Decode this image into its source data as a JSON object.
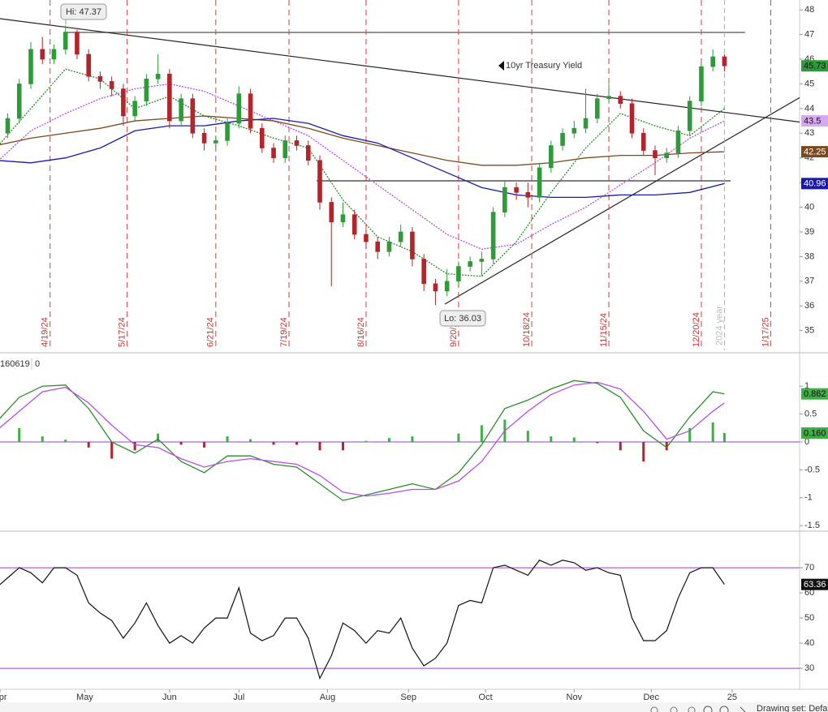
{
  "chart_data": [
    {
      "type": "candlestick",
      "title": "10yr Treasury Yield",
      "x": [
        0,
        3,
        6,
        9,
        12,
        15,
        18,
        21,
        24,
        27,
        30,
        33,
        36,
        39,
        42,
        45,
        48,
        51,
        54,
        57,
        60,
        63,
        66,
        69,
        72,
        75,
        78,
        81,
        84,
        87,
        90,
        93,
        96,
        99,
        102,
        105,
        108,
        111,
        114,
        117,
        120,
        123,
        126,
        129,
        132,
        135,
        138,
        141,
        144,
        147,
        150,
        153,
        156,
        159,
        162,
        165,
        168,
        171,
        174,
        177,
        180,
        183,
        186,
        189
      ],
      "open": [
        43.2,
        43.0,
        43.6,
        45.0,
        46.4,
        46.0,
        46.4,
        47.1,
        46.2,
        45.3,
        45.1,
        44.8,
        43.7,
        44.3,
        45.2,
        45.4,
        43.5,
        44.4,
        43.0,
        42.6,
        42.7,
        43.4,
        44.6,
        43.2,
        42.4,
        42.0,
        42.7,
        42.5,
        41.9,
        40.2,
        39.4,
        39.7,
        38.9,
        38.6,
        38.2,
        38.6,
        39.0,
        37.9,
        36.9,
        36.6,
        37.0,
        37.6,
        37.8,
        37.9,
        39.8,
        40.8,
        40.6,
        40.4,
        41.6,
        42.5,
        43.0,
        43.2,
        43.6,
        44.4,
        44.5,
        44.2,
        43.0,
        42.3,
        42.0,
        42.2,
        43.1,
        44.3,
        45.7,
        46.1
      ],
      "high": [
        43.4,
        43.8,
        45.2,
        46.7,
        46.9,
        46.6,
        47.37,
        47.2,
        46.4,
        45.5,
        45.3,
        45.0,
        44.5,
        45.4,
        46.2,
        45.6,
        44.6,
        44.6,
        43.2,
        42.9,
        43.6,
        44.9,
        44.8,
        43.4,
        42.6,
        42.9,
        42.9,
        42.7,
        42.1,
        40.4,
        40.2,
        39.9,
        39.1,
        38.8,
        38.8,
        39.3,
        39.2,
        38.1,
        37.1,
        37.5,
        37.8,
        38.0,
        38.2,
        40.0,
        41.1,
        41.0,
        41.0,
        41.8,
        42.7,
        43.2,
        43.5,
        44.8,
        44.6,
        45.0,
        44.7,
        44.4,
        43.2,
        42.5,
        42.4,
        43.3,
        44.5,
        45.9,
        46.4,
        46.2
      ],
      "low": [
        42.8,
        42.8,
        43.4,
        44.8,
        45.8,
        45.8,
        46.2,
        46.0,
        45.1,
        44.8,
        44.5,
        43.3,
        43.5,
        44.1,
        45.0,
        43.2,
        43.3,
        42.8,
        42.3,
        42.4,
        42.5,
        43.2,
        43.0,
        42.2,
        41.8,
        41.8,
        42.3,
        41.7,
        39.9,
        36.8,
        39.2,
        38.7,
        38.3,
        37.9,
        38.0,
        38.4,
        37.6,
        36.6,
        36.03,
        36.4,
        36.8,
        37.4,
        37.2,
        37.7,
        39.6,
        40.3,
        40.0,
        40.2,
        41.4,
        42.3,
        42.8,
        43.0,
        43.4,
        44.2,
        44.0,
        42.8,
        42.1,
        41.3,
        41.8,
        42.0,
        42.9,
        44.1,
        45.5,
        45.5
      ],
      "close": [
        43.0,
        43.6,
        45.0,
        46.4,
        46.0,
        46.4,
        47.1,
        46.2,
        45.3,
        45.1,
        44.8,
        43.7,
        44.3,
        45.2,
        45.4,
        43.5,
        44.4,
        43.0,
        42.6,
        42.7,
        43.4,
        44.6,
        43.2,
        42.4,
        42.0,
        42.7,
        42.5,
        41.9,
        40.2,
        39.4,
        39.7,
        38.9,
        38.6,
        38.2,
        38.6,
        39.0,
        37.9,
        36.9,
        36.6,
        37.0,
        37.6,
        37.8,
        37.9,
        39.8,
        40.8,
        40.6,
        40.4,
        41.6,
        42.5,
        43.0,
        43.2,
        43.6,
        44.4,
        44.5,
        44.2,
        43.0,
        42.3,
        42.0,
        42.2,
        43.1,
        44.3,
        45.7,
        46.1,
        45.73
      ],
      "color_up": "#2f9a3a",
      "color_down": "#b3242b",
      "ma_x": [
        0,
        9,
        18,
        27,
        36,
        45,
        54,
        63,
        72,
        81,
        90,
        99,
        108,
        117,
        126,
        135,
        144,
        153,
        162,
        171,
        180,
        189
      ],
      "overlays": [
        {
          "color": "#2a8a2a",
          "dashed": true,
          "values": [
            42.4,
            44.0,
            45.6,
            45.2,
            44.0,
            44.5,
            43.7,
            43.3,
            42.8,
            42.4,
            40.3,
            38.8,
            38.2,
            37.3,
            37.2,
            38.6,
            40.6,
            42.4,
            43.8,
            43.3,
            42.9,
            44.0
          ]
        },
        {
          "color": "#b44fe6",
          "dashed": true,
          "values": [
            41.8,
            43.1,
            43.8,
            44.4,
            44.8,
            45.0,
            44.7,
            44.1,
            43.5,
            42.9,
            41.9,
            40.9,
            39.9,
            38.9,
            38.3,
            38.5,
            39.3,
            40.0,
            40.9,
            41.8,
            42.8,
            43.5
          ]
        },
        {
          "color": "#7a4a1e",
          "dashed": false,
          "values": [
            42.5,
            42.8,
            43.0,
            43.2,
            43.5,
            43.6,
            43.7,
            43.6,
            43.5,
            43.2,
            42.8,
            42.5,
            42.2,
            41.9,
            41.7,
            41.7,
            41.8,
            42.0,
            42.1,
            42.1,
            42.2,
            42.25
          ]
        },
        {
          "color": "#1a1aaa",
          "dashed": false,
          "values": [
            41.9,
            41.8,
            42.0,
            42.4,
            43.1,
            43.3,
            43.3,
            43.5,
            43.6,
            43.4,
            42.9,
            42.6,
            42.0,
            41.4,
            40.8,
            40.5,
            40.4,
            40.4,
            40.5,
            40.5,
            40.6,
            40.96
          ]
        }
      ],
      "tags": [
        {
          "value": 45.73,
          "color": "#2f9a3a",
          "text_color": "#111"
        },
        {
          "value": 43.5,
          "color": "#d7a8f2",
          "text_color": "#111"
        },
        {
          "value": 42.25,
          "color": "#7a4a1e",
          "text_color": "#fff"
        },
        {
          "value": 40.96,
          "color": "#1a1aaa",
          "text_color": "#fff"
        }
      ],
      "annotations": [
        "Hi: 47.37",
        "Lo: 36.03"
      ],
      "events": [
        {
          "x": 14,
          "label": "4/19/24"
        },
        {
          "x": 34,
          "label": "5/17/24"
        },
        {
          "x": 57,
          "label": "6/21/24"
        },
        {
          "x": 76,
          "label": "7/19/24"
        },
        {
          "x": 96,
          "label": "8/16/24"
        },
        {
          "x": 120,
          "label": "9/20/24"
        },
        {
          "x": 139,
          "label": "10/18/24"
        },
        {
          "x": 159,
          "label": "11/15/24"
        },
        {
          "x": 183,
          "label": "12/20/24"
        },
        {
          "x": 201,
          "label": "1/17/25"
        }
      ],
      "year_marker": {
        "x": 189,
        "label": "2024 year"
      },
      "xlim": [
        1,
        208.5
      ],
      "ylim": [
        34.2,
        48.4
      ],
      "yticks": [
        35,
        36,
        37,
        38,
        39,
        40,
        41,
        42,
        43,
        44,
        45,
        46,
        47,
        48
      ]
    },
    {
      "type": "macd",
      "header": [
        "160619",
        "0"
      ],
      "x": [
        0,
        6,
        12,
        18,
        24,
        30,
        36,
        42,
        48,
        54,
        60,
        66,
        72,
        78,
        84,
        90,
        96,
        102,
        108,
        114,
        120,
        126,
        132,
        138,
        144,
        150,
        156,
        162,
        168,
        174,
        180,
        186,
        189
      ],
      "series": [
        {
          "color": "#2e8b2e",
          "values": [
            0.35,
            0.8,
            1.0,
            1.02,
            0.6,
            0.0,
            -0.2,
            0.05,
            -0.35,
            -0.55,
            -0.25,
            -0.25,
            -0.4,
            -0.45,
            -0.75,
            -1.05,
            -0.95,
            -0.85,
            -0.75,
            -0.85,
            -0.55,
            -0.05,
            0.6,
            0.75,
            0.95,
            1.1,
            1.05,
            0.8,
            0.2,
            -0.1,
            0.45,
            0.9,
            0.862
          ]
        },
        {
          "color": "#b84fe0",
          "values": [
            0.2,
            0.55,
            0.9,
            0.98,
            0.7,
            0.3,
            -0.05,
            -0.1,
            -0.3,
            -0.45,
            -0.35,
            -0.3,
            -0.35,
            -0.4,
            -0.6,
            -0.9,
            -0.97,
            -0.92,
            -0.85,
            -0.85,
            -0.7,
            -0.35,
            0.2,
            0.55,
            0.85,
            1.02,
            1.07,
            0.95,
            0.55,
            0.05,
            0.2,
            0.55,
            0.7
          ]
        }
      ],
      "histogram": {
        "color_up": "#3cb043",
        "color_down": "#b3242b",
        "values": [
          0.15,
          0.25,
          0.1,
          0.04,
          -0.1,
          -0.3,
          -0.15,
          0.15,
          -0.05,
          -0.1,
          0.1,
          0.05,
          -0.05,
          -0.05,
          -0.15,
          -0.15,
          0.02,
          0.07,
          0.1,
          0.0,
          0.15,
          0.3,
          0.4,
          0.2,
          0.1,
          0.08,
          -0.02,
          -0.15,
          -0.35,
          -0.15,
          0.25,
          0.35,
          0.16
        ]
      },
      "tags": [
        {
          "value": 0.862,
          "color": "#3cb043",
          "text_color": "#111"
        },
        {
          "value": 0.16,
          "label": "0.160",
          "color": "#3cb043",
          "text_color": "#111"
        }
      ],
      "xlim": [
        1,
        208.5
      ],
      "ylim": [
        -1.57,
        1.57
      ],
      "yticks": [
        1,
        0.5,
        0,
        -0.5,
        -1,
        -1.5
      ]
    },
    {
      "type": "line",
      "x": [
        0,
        3,
        6,
        9,
        12,
        15,
        18,
        21,
        24,
        27,
        30,
        33,
        36,
        39,
        42,
        45,
        48,
        51,
        54,
        57,
        60,
        63,
        66,
        69,
        72,
        75,
        78,
        81,
        84,
        87,
        90,
        93,
        96,
        99,
        102,
        105,
        108,
        111,
        114,
        117,
        120,
        123,
        126,
        129,
        132,
        135,
        138,
        141,
        144,
        147,
        150,
        153,
        156,
        159,
        162,
        165,
        168,
        171,
        174,
        177,
        180,
        183,
        186,
        189
      ],
      "values": [
        62,
        66,
        70,
        68,
        64,
        70,
        70,
        67,
        56,
        52,
        49,
        42,
        48,
        56,
        47,
        40,
        43,
        40,
        46,
        50,
        50,
        62,
        44,
        41,
        43,
        50,
        50,
        42,
        26,
        35,
        48,
        45,
        40,
        45,
        44,
        50,
        38,
        31,
        34,
        40,
        55,
        57,
        56,
        70,
        71,
        69,
        67,
        73,
        71,
        73,
        72,
        69,
        70,
        68,
        67,
        50,
        41,
        41,
        45,
        58,
        68,
        70,
        70,
        63.36
      ],
      "color": "#111",
      "levels": [
        70,
        30
      ],
      "level_color": "#9b3fd0",
      "tags": [
        {
          "value": 63.36,
          "color": "#111",
          "text_color": "#fff"
        }
      ],
      "xlim": [
        1,
        208.5
      ],
      "ylim": [
        22.3,
        83.9
      ],
      "yticks": [
        30,
        40,
        50,
        60,
        70
      ],
      "xticks": [
        {
          "value": 1,
          "label": "Apr"
        },
        {
          "value": 23,
          "label": "May"
        },
        {
          "value": 45,
          "label": "Jun"
        },
        {
          "value": 63,
          "label": "Jul"
        },
        {
          "value": 86,
          "label": "Aug"
        },
        {
          "value": 107,
          "label": "Sep"
        },
        {
          "value": 127,
          "label": "Oct"
        },
        {
          "value": 150,
          "label": "Nov"
        },
        {
          "value": 170,
          "label": "Dec"
        },
        {
          "value": 191,
          "label": "25"
        }
      ],
      "toolbar": "Drawing set: Defa"
    }
  ]
}
